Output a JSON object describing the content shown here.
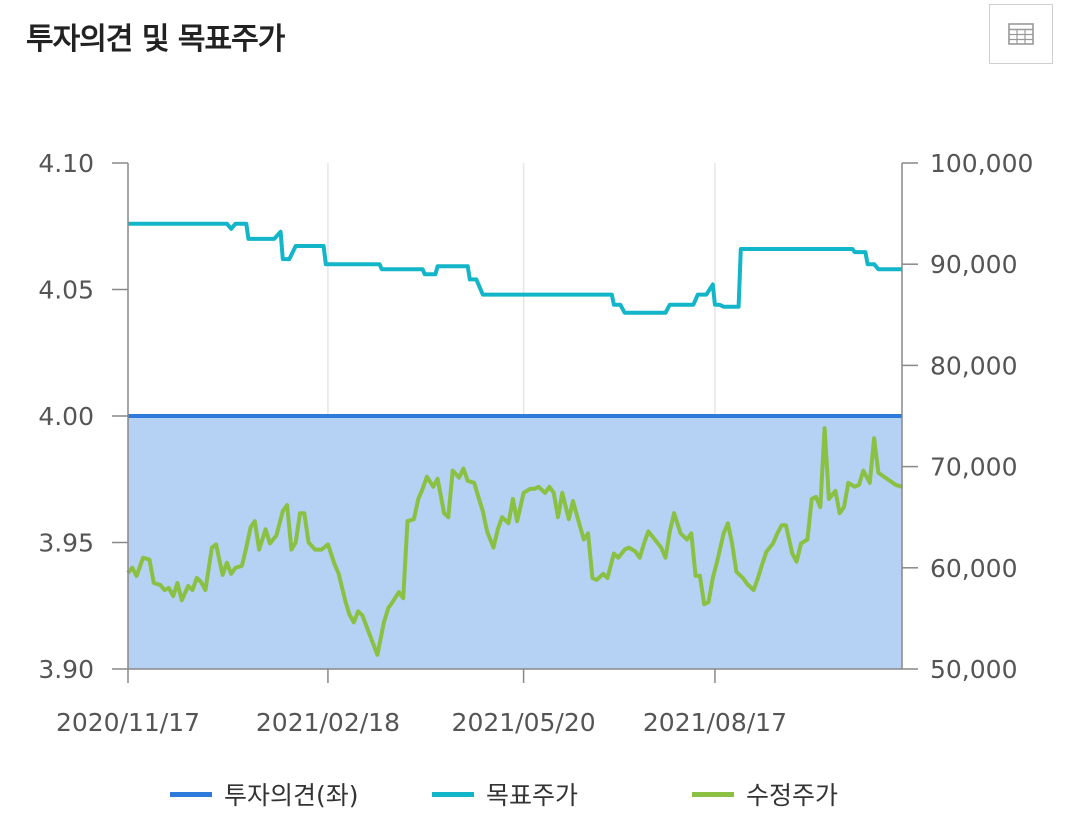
{
  "title": "투자의견 및 목표주가",
  "table_button": {
    "icon": "table-icon"
  },
  "colors": {
    "opinion": "#2e7bdc",
    "target": "#12b6c8",
    "price": "#8cc043",
    "fill": "#b5d1f4",
    "grid": "#e6e6e6",
    "axis": "#888888",
    "tick_text": "#555555"
  },
  "chart_data": {
    "type": "line",
    "title": "투자의견 및 목표주가",
    "x_ticks": [
      "2020/11/17",
      "2021/02/18",
      "2021/05/20",
      "2021/08/17"
    ],
    "y_left": {
      "min": 3.9,
      "max": 4.1,
      "ticks": [
        "4.10",
        "4.05",
        "4.00",
        "3.95",
        "3.90"
      ]
    },
    "y_right": {
      "min": 50000,
      "max": 100000,
      "ticks": [
        "100,000",
        "90,000",
        "80,000",
        "70,000",
        "60,000",
        "50,000"
      ]
    },
    "grid": true,
    "legend_position": "bottom",
    "series": [
      {
        "name": "투자의견(좌)",
        "axis": "left",
        "style": "area",
        "points": [
          [
            "2020/11/17",
            4.0
          ],
          [
            "2021/11/12",
            4.0
          ]
        ]
      },
      {
        "name": "목표주가",
        "axis": "right",
        "style": "line",
        "points": [
          [
            "2020/11/17",
            94000
          ],
          [
            "2021/01/02",
            94000
          ],
          [
            "2021/01/04",
            93500
          ],
          [
            "2021/01/06",
            94000
          ],
          [
            "2021/01/11",
            94000
          ],
          [
            "2021/01/12",
            92500
          ],
          [
            "2021/01/24",
            92500
          ],
          [
            "2021/01/27",
            93200
          ],
          [
            "2021/01/28",
            90500
          ],
          [
            "2021/01/31",
            90500
          ],
          [
            "2021/02/03",
            91800
          ],
          [
            "2021/02/16",
            91800
          ],
          [
            "2021/02/17",
            90000
          ],
          [
            "2021/03/14",
            90000
          ],
          [
            "2021/03/15",
            89500
          ],
          [
            "2021/04/03",
            89500
          ],
          [
            "2021/04/04",
            89000
          ],
          [
            "2021/04/09",
            89000
          ],
          [
            "2021/04/10",
            89800
          ],
          [
            "2021/04/24",
            89800
          ],
          [
            "2021/04/25",
            88500
          ],
          [
            "2021/04/28",
            88500
          ],
          [
            "2021/05/01",
            87000
          ],
          [
            "2021/06/30",
            87000
          ],
          [
            "2021/07/01",
            86000
          ],
          [
            "2021/07/04",
            86000
          ],
          [
            "2021/07/06",
            85200
          ],
          [
            "2021/07/25",
            85200
          ],
          [
            "2021/07/27",
            86000
          ],
          [
            "2021/08/07",
            86000
          ],
          [
            "2021/08/09",
            87000
          ],
          [
            "2021/08/13",
            87000
          ],
          [
            "2021/08/16",
            88000
          ],
          [
            "2021/08/17",
            86000
          ],
          [
            "2021/08/19",
            86000
          ],
          [
            "2021/08/21",
            85800
          ],
          [
            "2021/08/28",
            85800
          ],
          [
            "2021/08/29",
            91500
          ],
          [
            "2021/10/20",
            91500
          ],
          [
            "2021/10/21",
            91200
          ],
          [
            "2021/10/26",
            91200
          ],
          [
            "2021/10/27",
            90000
          ],
          [
            "2021/10/30",
            90000
          ],
          [
            "2021/11/01",
            89500
          ],
          [
            "2021/11/12",
            89500
          ]
        ]
      },
      {
        "name": "수정주가",
        "axis": "right",
        "style": "line",
        "points": [
          [
            "2020/11/17",
            59500
          ],
          [
            "2020/11/19",
            60000
          ],
          [
            "2020/11/21",
            59200
          ],
          [
            "2020/11/24",
            61000
          ],
          [
            "2020/11/27",
            60800
          ],
          [
            "2020/11/29",
            58500
          ],
          [
            "2020/12/02",
            58300
          ],
          [
            "2020/12/04",
            57800
          ],
          [
            "2020/12/06",
            58000
          ],
          [
            "2020/12/08",
            57200
          ],
          [
            "2020/12/10",
            58500
          ],
          [
            "2020/12/12",
            56800
          ],
          [
            "2020/12/15",
            58200
          ],
          [
            "2020/12/17",
            57800
          ],
          [
            "2020/12/19",
            59000
          ],
          [
            "2020/12/21",
            58600
          ],
          [
            "2020/12/23",
            57800
          ],
          [
            "2020/12/26",
            62000
          ],
          [
            "2020/12/28",
            62300
          ],
          [
            "2020/12/31",
            59300
          ],
          [
            "2021/01/02",
            60500
          ],
          [
            "2021/01/04",
            59400
          ],
          [
            "2021/01/06",
            60000
          ],
          [
            "2021/01/09",
            60200
          ],
          [
            "2021/01/11",
            62000
          ],
          [
            "2021/01/13",
            64000
          ],
          [
            "2021/01/15",
            64600
          ],
          [
            "2021/01/17",
            61800
          ],
          [
            "2021/01/20",
            63800
          ],
          [
            "2021/01/22",
            62400
          ],
          [
            "2021/01/25",
            63200
          ],
          [
            "2021/01/28",
            65600
          ],
          [
            "2021/01/30",
            66200
          ],
          [
            "2021/02/01",
            61800
          ],
          [
            "2021/02/03",
            62500
          ],
          [
            "2021/02/05",
            65400
          ],
          [
            "2021/02/07",
            65400
          ],
          [
            "2021/02/09",
            62500
          ],
          [
            "2021/02/12",
            61800
          ],
          [
            "2021/02/15",
            61800
          ],
          [
            "2021/02/18",
            62300
          ],
          [
            "2021/02/21",
            60400
          ],
          [
            "2021/02/23",
            59400
          ],
          [
            "2021/02/26",
            56800
          ],
          [
            "2021/02/28",
            55400
          ],
          [
            "2021/03/02",
            54600
          ],
          [
            "2021/03/04",
            55700
          ],
          [
            "2021/03/06",
            55300
          ],
          [
            "2021/03/08",
            54200
          ],
          [
            "2021/03/11",
            52500
          ],
          [
            "2021/03/13",
            51400
          ],
          [
            "2021/03/16",
            54600
          ],
          [
            "2021/03/18",
            56000
          ],
          [
            "2021/03/20",
            56600
          ],
          [
            "2021/03/23",
            57600
          ],
          [
            "2021/03/25",
            57000
          ],
          [
            "2021/03/27",
            64600
          ],
          [
            "2021/03/30",
            64800
          ],
          [
            "2021/04/01",
            66800
          ],
          [
            "2021/04/03",
            67800
          ],
          [
            "2021/04/05",
            69000
          ],
          [
            "2021/04/08",
            68000
          ],
          [
            "2021/04/10",
            68800
          ],
          [
            "2021/04/13",
            65400
          ],
          [
            "2021/04/15",
            65000
          ],
          [
            "2021/04/17",
            69600
          ],
          [
            "2021/04/20",
            68900
          ],
          [
            "2021/04/22",
            69800
          ],
          [
            "2021/04/24",
            68600
          ],
          [
            "2021/04/27",
            68400
          ],
          [
            "2021/04/29",
            67000
          ],
          [
            "2021/05/01",
            65600
          ],
          [
            "2021/05/03",
            63600
          ],
          [
            "2021/05/06",
            62000
          ],
          [
            "2021/05/08",
            63800
          ],
          [
            "2021/05/10",
            65000
          ],
          [
            "2021/05/13",
            64400
          ],
          [
            "2021/05/15",
            66800
          ],
          [
            "2021/05/17",
            64600
          ],
          [
            "2021/05/20",
            67400
          ],
          [
            "2021/05/23",
            67800
          ],
          [
            "2021/05/25",
            67800
          ],
          [
            "2021/05/27",
            68000
          ],
          [
            "2021/05/30",
            67400
          ],
          [
            "2021/06/01",
            68000
          ],
          [
            "2021/06/03",
            67400
          ],
          [
            "2021/06/05",
            65000
          ],
          [
            "2021/06/07",
            67400
          ],
          [
            "2021/06/10",
            64800
          ],
          [
            "2021/06/12",
            66600
          ],
          [
            "2021/06/14",
            65000
          ],
          [
            "2021/06/17",
            62800
          ],
          [
            "2021/06/19",
            63400
          ],
          [
            "2021/06/21",
            59000
          ],
          [
            "2021/06/23",
            58800
          ],
          [
            "2021/06/26",
            59400
          ],
          [
            "2021/06/28",
            59000
          ],
          [
            "2021/07/01",
            61400
          ],
          [
            "2021/07/03",
            61000
          ],
          [
            "2021/07/06",
            61800
          ],
          [
            "2021/07/08",
            62000
          ],
          [
            "2021/07/11",
            61600
          ],
          [
            "2021/07/13",
            61000
          ],
          [
            "2021/07/15",
            62400
          ],
          [
            "2021/07/17",
            63600
          ],
          [
            "2021/07/20",
            62800
          ],
          [
            "2021/07/23",
            62000
          ],
          [
            "2021/07/25",
            61000
          ],
          [
            "2021/07/27",
            63600
          ],
          [
            "2021/07/29",
            65400
          ],
          [
            "2021/08/01",
            63400
          ],
          [
            "2021/08/04",
            62800
          ],
          [
            "2021/08/06",
            63400
          ],
          [
            "2021/08/08",
            59200
          ],
          [
            "2021/08/10",
            59200
          ],
          [
            "2021/08/12",
            56400
          ],
          [
            "2021/08/14",
            56600
          ],
          [
            "2021/08/16",
            59000
          ],
          [
            "2021/08/18",
            60600
          ],
          [
            "2021/08/21",
            63400
          ],
          [
            "2021/08/23",
            64400
          ],
          [
            "2021/08/25",
            62400
          ],
          [
            "2021/08/27",
            59600
          ],
          [
            "2021/08/30",
            59000
          ],
          [
            "2021/09/01",
            58400
          ],
          [
            "2021/09/04",
            57800
          ],
          [
            "2021/09/06",
            59000
          ],
          [
            "2021/09/08",
            60400
          ],
          [
            "2021/09/10",
            61600
          ],
          [
            "2021/09/13",
            62400
          ],
          [
            "2021/09/15",
            63400
          ],
          [
            "2021/09/17",
            64200
          ],
          [
            "2021/09/19",
            64200
          ],
          [
            "2021/09/22",
            61400
          ],
          [
            "2021/09/24",
            60600
          ],
          [
            "2021/09/26",
            62400
          ],
          [
            "2021/09/29",
            62800
          ],
          [
            "2021/10/01",
            66800
          ],
          [
            "2021/10/03",
            67000
          ],
          [
            "2021/10/05",
            66000
          ],
          [
            "2021/10/07",
            73800
          ],
          [
            "2021/10/09",
            66800
          ],
          [
            "2021/10/12",
            67600
          ],
          [
            "2021/10/14",
            65400
          ],
          [
            "2021/10/16",
            66000
          ],
          [
            "2021/10/18",
            68400
          ],
          [
            "2021/10/21",
            68000
          ],
          [
            "2021/10/23",
            68200
          ],
          [
            "2021/10/25",
            69600
          ],
          [
            "2021/10/28",
            68400
          ],
          [
            "2021/10/30",
            72800
          ],
          [
            "2021/11/01",
            69400
          ],
          [
            "2021/11/05",
            68800
          ],
          [
            "2021/11/09",
            68200
          ],
          [
            "2021/11/12",
            68000
          ]
        ]
      }
    ]
  }
}
